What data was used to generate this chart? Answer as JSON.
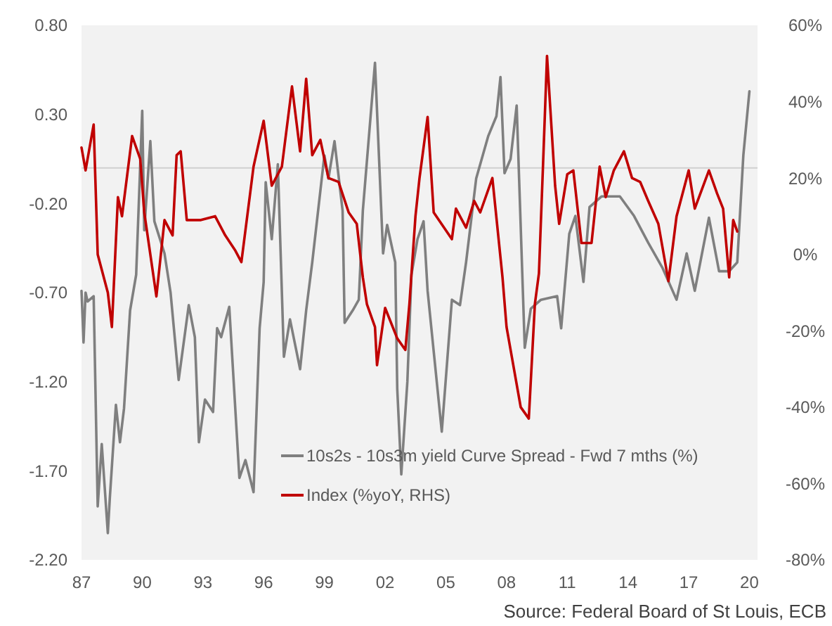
{
  "chart_data": {
    "type": "line",
    "x": [
      1987.0,
      1987.1,
      1987.2,
      1987.3,
      1987.6,
      1987.8,
      1988.0,
      1988.3,
      1988.4,
      1988.7,
      1988.9,
      1989.1,
      1989.4,
      1989.7,
      1990.0,
      1990.1,
      1990.4,
      1990.6,
      1991.1,
      1991.4,
      1991.8,
      1992.3,
      1992.6,
      1992.8,
      1993.1,
      1993.5,
      1993.7,
      1993.9,
      1994.3,
      1994.8,
      1995.1,
      1995.5,
      1995.8,
      1996.0,
      1996.1,
      1996.4,
      1996.7,
      1997.0,
      1997.3,
      1997.8,
      1998.1,
      1998.4,
      1999.0,
      1999.2,
      1999.5,
      1999.9,
      2000.0,
      2000.4,
      2000.7,
      2000.9,
      2001.5,
      2001.9,
      2002.1,
      2002.5,
      2002.6,
      2002.8,
      2003.1,
      2003.3,
      2003.6,
      2003.9,
      2004.1,
      2004.8,
      2005.3,
      2005.7,
      2006.0,
      2006.5,
      2007.1,
      2007.5,
      2007.7,
      2007.9,
      2008.2,
      2008.5,
      2008.9,
      2009.2,
      2009.7,
      2010.5,
      2010.7,
      2011.1,
      2011.4,
      2011.8,
      2012.1,
      2012.7,
      2013.6,
      2014.3,
      2015.0,
      2015.7,
      2016.4,
      2016.9,
      2017.3,
      2018.0,
      2018.5,
      2019.0,
      2019.4,
      2019.7,
      2020.0
    ],
    "series": [
      {
        "name": "10s2s - 10s3m yield Curve Spread - Fwd 7 mths (%)",
        "color": "#7f7f7f",
        "values": [
          -0.69,
          -0.98,
          -0.7,
          -0.75,
          -0.72,
          -1.9,
          -1.55,
          -2.05,
          -1.85,
          -1.33,
          -1.54,
          -1.35,
          -0.8,
          -0.6,
          0.32,
          -0.35,
          0.15,
          -0.3,
          -0.48,
          -0.7,
          -1.19,
          -0.77,
          -0.95,
          -1.54,
          -1.3,
          -1.37,
          -0.9,
          -0.95,
          -0.78,
          -1.74,
          -1.64,
          -1.82,
          -0.9,
          -0.64,
          -0.08,
          -0.4,
          0.02,
          -1.06,
          -0.85,
          -1.13,
          -0.8,
          -0.53,
          0.07,
          -0.06,
          0.15,
          -0.24,
          -0.87,
          -0.8,
          -0.74,
          -0.24,
          0.59,
          -0.48,
          -0.32,
          -0.53,
          -1.24,
          -1.72,
          -1.2,
          -0.6,
          -0.4,
          -0.3,
          -0.69,
          -1.48,
          -0.74,
          -0.77,
          -0.53,
          -0.06,
          0.18,
          0.29,
          0.51,
          -0.03,
          0.05,
          0.35,
          -1.01,
          -0.79,
          -0.74,
          -0.72,
          -0.9,
          -0.37,
          -0.27,
          -0.64,
          -0.22,
          -0.16,
          -0.16,
          -0.27,
          -0.42,
          -0.56,
          -0.74,
          -0.48,
          -0.69,
          -0.28,
          -0.58,
          -0.58,
          -0.53,
          0.07,
          0.43
        ]
      },
      {
        "name": "Index (%yoY, RHS)",
        "color": "#c00000",
        "axis": "y2",
        "x": [
          1987.0,
          1987.2,
          1987.6,
          1987.8,
          1988.3,
          1988.5,
          1988.8,
          1989.0,
          1989.5,
          1989.9,
          1990.1,
          1990.7,
          1991.1,
          1991.5,
          1991.7,
          1991.9,
          1992.2,
          1992.9,
          1993.6,
          1994.1,
          1994.6,
          1994.9,
          1995.5,
          1996.0,
          1996.4,
          1996.9,
          1997.4,
          1997.8,
          1998.1,
          1998.4,
          1998.8,
          1999.2,
          1999.7,
          2000.2,
          2000.6,
          2000.9,
          2001.1,
          2001.5,
          2001.6,
          2002.0,
          2002.6,
          2003.0,
          2003.2,
          2003.5,
          2003.7,
          2004.1,
          2004.4,
          2005.3,
          2005.5,
          2006.0,
          2006.4,
          2006.7,
          2007.3,
          2007.8,
          2008.0,
          2008.7,
          2009.1,
          2009.4,
          2009.6,
          2009.8,
          2010.0,
          2010.4,
          2010.6,
          2011.0,
          2011.3,
          2011.7,
          2012.2,
          2012.6,
          2012.9,
          2013.3,
          2013.8,
          2014.2,
          2014.6,
          2015.0,
          2015.5,
          2016.0,
          2016.4,
          2017.0,
          2017.3,
          2018.0,
          2018.4,
          2018.7,
          2019.0,
          2019.2,
          2019.4
        ],
        "values": [
          28,
          22,
          34,
          0,
          -10,
          -19,
          15,
          10,
          31,
          25,
          11,
          -11,
          9,
          5,
          26,
          27,
          9,
          9,
          10,
          5,
          1,
          -2,
          23,
          35,
          18,
          23,
          44,
          27,
          46,
          26,
          30,
          20,
          19,
          11,
          8,
          -6,
          -13,
          -19,
          -29,
          -14,
          -22,
          -25,
          -13,
          10,
          20,
          36,
          11,
          4,
          12,
          7,
          14,
          11,
          20,
          -6,
          -19,
          -40,
          -43,
          -13,
          -5,
          23,
          52,
          18,
          8,
          21,
          22,
          3,
          3,
          23,
          15,
          22,
          27,
          20,
          19,
          14,
          8,
          -7,
          10,
          22,
          12,
          22,
          16,
          12,
          -6,
          9,
          6
        ]
      }
    ],
    "xlim": [
      1987,
      2020.4
    ],
    "xticks": [
      {
        "value": 1987,
        "label": "87"
      },
      {
        "value": 1990,
        "label": "90"
      },
      {
        "value": 1993,
        "label": "93"
      },
      {
        "value": 1996,
        "label": "96"
      },
      {
        "value": 1999,
        "label": "99"
      },
      {
        "value": 2002,
        "label": "02"
      },
      {
        "value": 2005,
        "label": "05"
      },
      {
        "value": 2008,
        "label": "08"
      },
      {
        "value": 2011,
        "label": "11"
      },
      {
        "value": 2014,
        "label": "14"
      },
      {
        "value": 2017,
        "label": "17"
      },
      {
        "value": 2020,
        "label": "20"
      }
    ],
    "ylim": [
      -2.2,
      0.8
    ],
    "yticks": [
      {
        "value": 0.8,
        "label": "0.80"
      },
      {
        "value": 0.3,
        "label": "0.30"
      },
      {
        "value": -0.2,
        "label": "-0.20"
      },
      {
        "value": -0.7,
        "label": "-0.70"
      },
      {
        "value": -1.2,
        "label": "-1.20"
      },
      {
        "value": -1.7,
        "label": "-1.70"
      },
      {
        "value": -2.2,
        "label": "-2.20"
      }
    ],
    "y2lim": [
      -80,
      60
    ],
    "y2ticks": [
      {
        "value": 60,
        "label": "60%"
      },
      {
        "value": 40,
        "label": "40%"
      },
      {
        "value": 20,
        "label": "20%"
      },
      {
        "value": 0,
        "label": "0%"
      },
      {
        "value": -20,
        "label": "-20%"
      },
      {
        "value": -40,
        "label": "-40%"
      },
      {
        "value": -60,
        "label": "-60%"
      },
      {
        "value": -80,
        "label": "-80%"
      }
    ],
    "ref_lines": [
      {
        "axis": "y",
        "value": 0,
        "color": "#d0d0d0"
      }
    ],
    "grid": false,
    "legend": "bottom",
    "annotations": [
      "Source: Federal Board of St Louis, ECB"
    ]
  }
}
